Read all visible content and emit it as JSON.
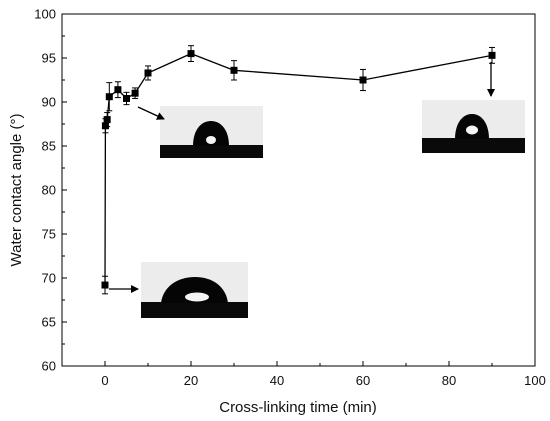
{
  "chart_data": {
    "type": "scatter",
    "xlabel": "Cross-linking time (min)",
    "ylabel": "Water contact angle (°)",
    "xlim": [
      -10,
      100
    ],
    "ylim": [
      60,
      100
    ],
    "xticks": [
      0,
      20,
      40,
      60,
      80,
      100
    ],
    "yticks": [
      60,
      65,
      70,
      75,
      80,
      85,
      90,
      95,
      100
    ],
    "grid": false,
    "connected": true,
    "marker": "square",
    "series": [
      {
        "x": [
          0,
          0.1,
          0.5,
          1,
          3,
          5,
          7,
          10,
          20,
          30,
          60,
          90
        ],
        "y": [
          69.2,
          87.3,
          88.0,
          90.6,
          91.4,
          90.4,
          91.0,
          93.3,
          95.5,
          93.6,
          92.5,
          95.3
        ],
        "err": [
          1.0,
          0.8,
          0.8,
          1.6,
          0.9,
          0.7,
          0.6,
          0.8,
          0.9,
          1.1,
          1.2,
          0.9
        ]
      }
    ],
    "insets": [
      {
        "name": "droplet-inset-0min",
        "x": 0,
        "y": 69.2
      },
      {
        "name": "droplet-inset-5min",
        "x": 5,
        "y": 90.4
      },
      {
        "name": "droplet-inset-90min",
        "x": 90,
        "y": 95.3
      }
    ]
  },
  "colors": {
    "line": "#000000",
    "marker": "#000000",
    "droplet_bg": "#ececec",
    "droplet": "#050505",
    "reflection": "#f4f4f4"
  }
}
